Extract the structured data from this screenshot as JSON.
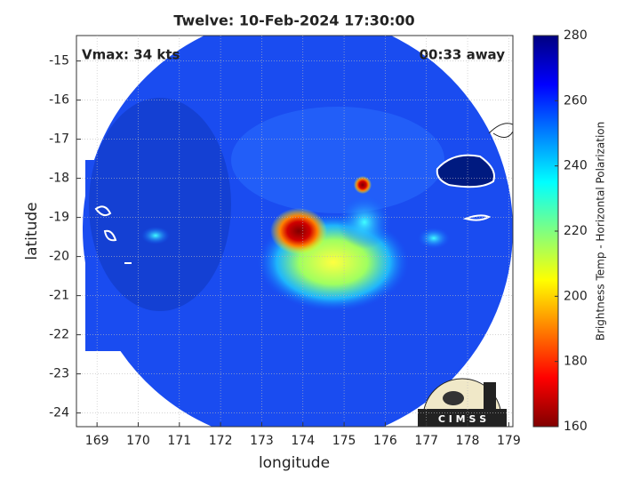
{
  "chart_data": {
    "type": "map",
    "title": "Twelve: 10-Feb-2024 17:30:00",
    "x_label": "longitude",
    "y_label": "latitude",
    "xlim": [
      168.5,
      179.1
    ],
    "ylim": [
      -24.35,
      -14.35
    ],
    "xticks": [
      169,
      170,
      171,
      172,
      173,
      174,
      175,
      176,
      177,
      178,
      179
    ],
    "yticks": [
      -24,
      -23,
      -22,
      -21,
      -20,
      -19,
      -18,
      -17,
      -16,
      -15
    ],
    "grid": true,
    "annotations": [
      "Vmax: 34 kts",
      "00:33 away"
    ],
    "logo": "C I M S S",
    "colorbar": {
      "label": "Brightness Temp - Horizontal Polarization",
      "lim": [
        160,
        280
      ],
      "ticks": [
        160,
        180,
        200,
        220,
        240,
        260,
        280
      ],
      "colors": [
        "#800000",
        "#ff0000",
        "#ff8000",
        "#ffff00",
        "#80ff80",
        "#00ffff",
        "#0080ff",
        "#0000ff",
        "#000080"
      ]
    }
  }
}
